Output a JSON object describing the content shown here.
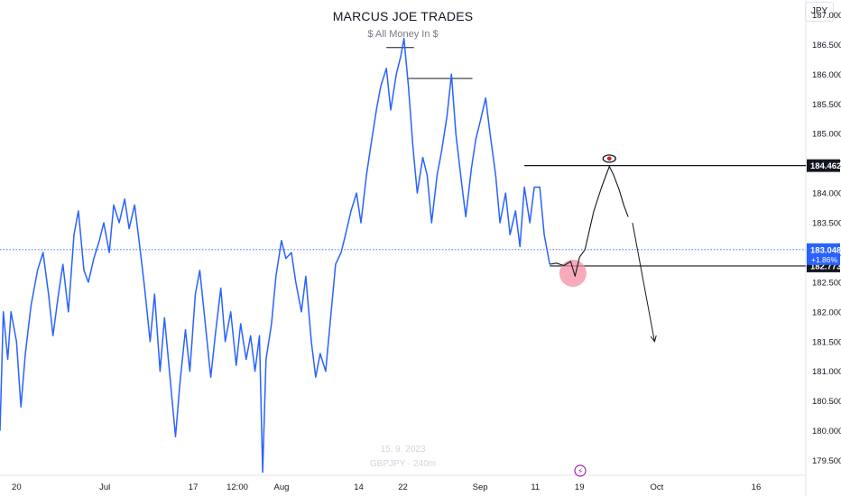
{
  "header": {
    "title": "MARCUS JOE TRADES",
    "subtitle": "$ All Money In $",
    "currency": "JPY"
  },
  "watermark": {
    "date": "15. 9. 2023",
    "symbol": "GBPJPY · 240m"
  },
  "colors": {
    "series": "#2962ff",
    "annotation": "#131722",
    "highlight": "#f48fa3",
    "price_axis_label": "#2962ff"
  },
  "chart_data": {
    "type": "line",
    "xlabel": "",
    "ylabel": "",
    "ylim": [
      179.25,
      187.25
    ],
    "y_ticks": [
      187.0,
      186.5,
      186.0,
      185.5,
      185.0,
      184.5,
      184.0,
      183.5,
      183.0,
      182.5,
      182.0,
      181.5,
      181.0,
      180.5,
      180.0,
      179.5
    ],
    "y_tick_labels": [
      "187.000",
      "186.500",
      "186.000",
      "185.500",
      "185.000",
      "184.500",
      "184.000",
      "183.500",
      "183.000",
      "182.500",
      "182.000",
      "181.500",
      "181.000",
      "180.500",
      "180.000",
      "179.500"
    ],
    "x_ticks": [
      {
        "t": 0,
        "label": "20"
      },
      {
        "t": 8,
        "label": "Jul"
      },
      {
        "t": 16,
        "label": "17"
      },
      {
        "t": 20,
        "label": "12:00"
      },
      {
        "t": 24,
        "label": "Aug"
      },
      {
        "t": 31,
        "label": "14"
      },
      {
        "t": 35,
        "label": "22"
      },
      {
        "t": 42,
        "label": "Sep"
      },
      {
        "t": 47,
        "label": "11"
      },
      {
        "t": 51,
        "label": "19"
      },
      {
        "t": 58,
        "label": "Oct"
      },
      {
        "t": 67,
        "label": "16"
      }
    ],
    "xlim": [
      -1.5,
      71.5
    ],
    "series": [
      {
        "points": [
          [
            -1.5,
            180.0
          ],
          [
            -1.2,
            182.0
          ],
          [
            -0.8,
            181.2
          ],
          [
            -0.5,
            182.0
          ],
          [
            0.0,
            181.5
          ],
          [
            0.4,
            180.4
          ],
          [
            0.8,
            181.3
          ],
          [
            1.3,
            182.1
          ],
          [
            1.9,
            182.7
          ],
          [
            2.4,
            183.0
          ],
          [
            2.9,
            182.3
          ],
          [
            3.3,
            181.6
          ],
          [
            3.8,
            182.3
          ],
          [
            4.2,
            182.8
          ],
          [
            4.7,
            182.0
          ],
          [
            5.2,
            183.3
          ],
          [
            5.6,
            183.7
          ],
          [
            6.1,
            182.7
          ],
          [
            6.5,
            182.5
          ],
          [
            7.0,
            182.9
          ],
          [
            7.5,
            183.2
          ],
          [
            7.9,
            183.5
          ],
          [
            8.4,
            183.0
          ],
          [
            8.8,
            183.8
          ],
          [
            9.3,
            183.5
          ],
          [
            9.8,
            183.9
          ],
          [
            10.2,
            183.4
          ],
          [
            10.7,
            183.8
          ],
          [
            11.1,
            183.2
          ],
          [
            11.6,
            182.4
          ],
          [
            12.1,
            181.5
          ],
          [
            12.5,
            182.3
          ],
          [
            13.0,
            181.0
          ],
          [
            13.4,
            181.9
          ],
          [
            13.9,
            180.9
          ],
          [
            14.4,
            179.9
          ],
          [
            14.8,
            180.8
          ],
          [
            15.3,
            181.7
          ],
          [
            15.7,
            181.0
          ],
          [
            16.2,
            182.3
          ],
          [
            16.6,
            182.7
          ],
          [
            17.1,
            181.8
          ],
          [
            17.6,
            180.9
          ],
          [
            18.0,
            181.6
          ],
          [
            18.5,
            182.4
          ],
          [
            18.9,
            181.5
          ],
          [
            19.4,
            182.0
          ],
          [
            19.9,
            181.1
          ],
          [
            20.3,
            181.8
          ],
          [
            20.8,
            181.2
          ],
          [
            21.2,
            181.6
          ],
          [
            21.6,
            181.0
          ],
          [
            22.0,
            181.6
          ],
          [
            22.3,
            179.3
          ],
          [
            22.6,
            181.2
          ],
          [
            23.1,
            181.8
          ],
          [
            23.5,
            182.6
          ],
          [
            24.0,
            183.2
          ],
          [
            24.4,
            182.9
          ],
          [
            24.9,
            183.0
          ],
          [
            25.3,
            182.5
          ],
          [
            25.8,
            182.0
          ],
          [
            26.2,
            182.6
          ],
          [
            26.7,
            181.5
          ],
          [
            27.1,
            180.9
          ],
          [
            27.5,
            181.3
          ],
          [
            28.0,
            181.0
          ],
          [
            28.5,
            182.0
          ],
          [
            28.9,
            182.8
          ],
          [
            29.4,
            183.0
          ],
          [
            29.8,
            183.3
          ],
          [
            30.3,
            183.7
          ],
          [
            30.8,
            184.0
          ],
          [
            31.2,
            183.5
          ],
          [
            31.7,
            184.3
          ],
          [
            32.1,
            184.8
          ],
          [
            32.6,
            185.4
          ],
          [
            33.0,
            185.8
          ],
          [
            33.5,
            186.1
          ],
          [
            33.9,
            185.4
          ],
          [
            34.4,
            186.0
          ],
          [
            34.8,
            186.3
          ],
          [
            35.1,
            186.6
          ],
          [
            35.5,
            185.8
          ],
          [
            35.9,
            184.8
          ],
          [
            36.3,
            184.0
          ],
          [
            36.8,
            184.6
          ],
          [
            37.2,
            184.3
          ],
          [
            37.6,
            183.5
          ],
          [
            38.1,
            184.3
          ],
          [
            38.5,
            184.7
          ],
          [
            39.0,
            185.3
          ],
          [
            39.4,
            186.0
          ],
          [
            39.8,
            185.0
          ],
          [
            40.3,
            184.2
          ],
          [
            40.7,
            183.6
          ],
          [
            41.2,
            184.4
          ],
          [
            41.6,
            184.9
          ],
          [
            42.0,
            185.2
          ],
          [
            42.5,
            185.6
          ],
          [
            42.9,
            185.0
          ],
          [
            43.4,
            184.3
          ],
          [
            43.8,
            183.5
          ],
          [
            44.3,
            184.0
          ],
          [
            44.7,
            183.3
          ],
          [
            45.2,
            183.7
          ],
          [
            45.6,
            183.1
          ],
          [
            46.0,
            184.1
          ],
          [
            46.5,
            183.5
          ],
          [
            46.9,
            184.1
          ],
          [
            47.4,
            184.1
          ],
          [
            47.8,
            183.3
          ],
          [
            48.3,
            182.8
          ]
        ]
      }
    ],
    "projection": [
      [
        48.3,
        182.8
      ],
      [
        48.9,
        182.82
      ],
      [
        49.6,
        182.78
      ],
      [
        50.2,
        182.85
      ],
      [
        50.6,
        182.6
      ],
      [
        51.0,
        182.92
      ],
      [
        51.5,
        183.05
      ],
      [
        52.3,
        183.7
      ],
      [
        53.0,
        184.1
      ],
      [
        53.7,
        184.45
      ],
      [
        54.1,
        184.3
      ],
      [
        54.6,
        184.05
      ],
      [
        55.0,
        183.8
      ],
      [
        55.4,
        183.6
      ]
    ],
    "forecast_arrow": [
      [
        55.8,
        183.5
      ],
      [
        57.8,
        181.5
      ]
    ],
    "annotations": [
      {
        "type": "hline",
        "price": 184.462,
        "label": "184.462",
        "from": 46.0
      },
      {
        "type": "hline",
        "price": 182.773,
        "label": "182.773",
        "from": 48.3
      },
      {
        "type": "segment",
        "price": 186.45,
        "from": 33.5,
        "to": 36.0
      },
      {
        "type": "segment",
        "price": 185.93,
        "from": 35.5,
        "to": 41.3
      },
      {
        "type": "circle",
        "t": 50.4,
        "price": 182.65
      },
      {
        "type": "eye",
        "t": 53.7,
        "price": 184.55
      }
    ],
    "current_price": {
      "value": 183.048,
      "label": "183.048",
      "change": "+1.86%"
    }
  }
}
